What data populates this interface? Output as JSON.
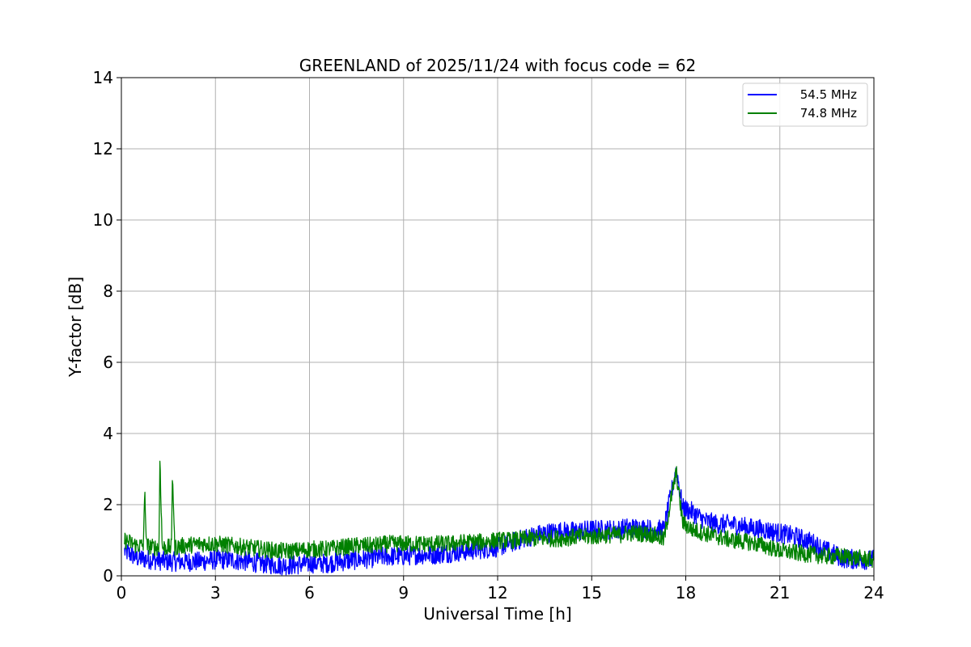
{
  "chart_data": {
    "type": "line",
    "title": "GREENLAND of 2025/11/24 with focus code = 62",
    "xlabel": "Universal Time [h]",
    "ylabel": "Y-factor [dB]",
    "xlim": [
      0,
      24
    ],
    "ylim": [
      0,
      14
    ],
    "xticks": [
      0,
      3,
      6,
      9,
      12,
      15,
      18,
      21,
      24
    ],
    "yticks": [
      0,
      2,
      4,
      6,
      8,
      10,
      12,
      14
    ],
    "grid": true,
    "legend_position": "top-right",
    "series": [
      {
        "name": "54.5 MHz",
        "color": "#0000ff",
        "x": [
          0.1,
          0.5,
          1,
          1.5,
          2,
          2.5,
          3,
          3.5,
          4,
          4.5,
          5,
          5.5,
          6,
          6.5,
          7,
          7.5,
          8,
          8.5,
          9,
          9.5,
          10,
          10.5,
          11,
          11.5,
          12,
          12.5,
          13,
          13.5,
          14,
          14.5,
          15,
          15.5,
          15.9,
          16.1,
          16.5,
          17,
          17.3,
          17.6,
          17.7,
          17.9,
          18.2,
          18.6,
          19,
          19.5,
          20,
          20.5,
          21,
          21.5,
          22,
          22.5,
          23,
          23.5,
          24
        ],
        "y": [
          0.7,
          0.5,
          0.45,
          0.4,
          0.4,
          0.4,
          0.45,
          0.45,
          0.4,
          0.35,
          0.3,
          0.3,
          0.35,
          0.35,
          0.4,
          0.45,
          0.5,
          0.55,
          0.55,
          0.6,
          0.6,
          0.65,
          0.7,
          0.75,
          0.8,
          0.95,
          1.1,
          1.2,
          1.25,
          1.25,
          1.3,
          1.3,
          1.3,
          1.35,
          1.35,
          1.3,
          1.3,
          2.6,
          3.0,
          1.9,
          1.8,
          1.55,
          1.45,
          1.45,
          1.35,
          1.3,
          1.2,
          1.1,
          0.95,
          0.7,
          0.5,
          0.45,
          0.45
        ]
      },
      {
        "name": "74.8 MHz",
        "color": "#008000",
        "x": [
          0.1,
          0.5,
          0.7,
          0.75,
          0.8,
          1,
          1.2,
          1.23,
          1.3,
          1.5,
          1.6,
          1.63,
          1.7,
          2,
          2.5,
          3,
          3.5,
          4,
          4.5,
          5,
          5.5,
          6,
          6.5,
          7,
          7.5,
          8,
          8.5,
          9,
          9.5,
          10,
          10.5,
          11,
          11.5,
          12,
          12.5,
          13,
          13.5,
          14,
          14.5,
          15,
          15.5,
          15.9,
          16.1,
          16.5,
          17,
          17.3,
          17.6,
          17.7,
          17.9,
          18.2,
          18.6,
          19,
          19.5,
          20,
          20.5,
          21,
          21.5,
          22,
          22.5,
          23,
          23.5,
          24
        ],
        "y": [
          1.0,
          0.85,
          0.85,
          2.4,
          0.85,
          0.8,
          0.8,
          3.4,
          0.8,
          0.8,
          0.8,
          3.0,
          0.8,
          0.85,
          0.9,
          0.9,
          0.85,
          0.8,
          0.75,
          0.7,
          0.7,
          0.75,
          0.75,
          0.8,
          0.85,
          0.85,
          0.9,
          0.9,
          0.9,
          0.9,
          0.9,
          0.95,
          0.95,
          1.0,
          1.0,
          1.05,
          1.05,
          1.05,
          1.1,
          1.1,
          1.15,
          1.15,
          1.2,
          1.2,
          1.15,
          1.0,
          2.5,
          2.9,
          1.5,
          1.3,
          1.2,
          1.1,
          1.0,
          0.95,
          0.85,
          0.7,
          0.65,
          0.6,
          0.55,
          0.55,
          0.5,
          0.45
        ]
      }
    ]
  }
}
